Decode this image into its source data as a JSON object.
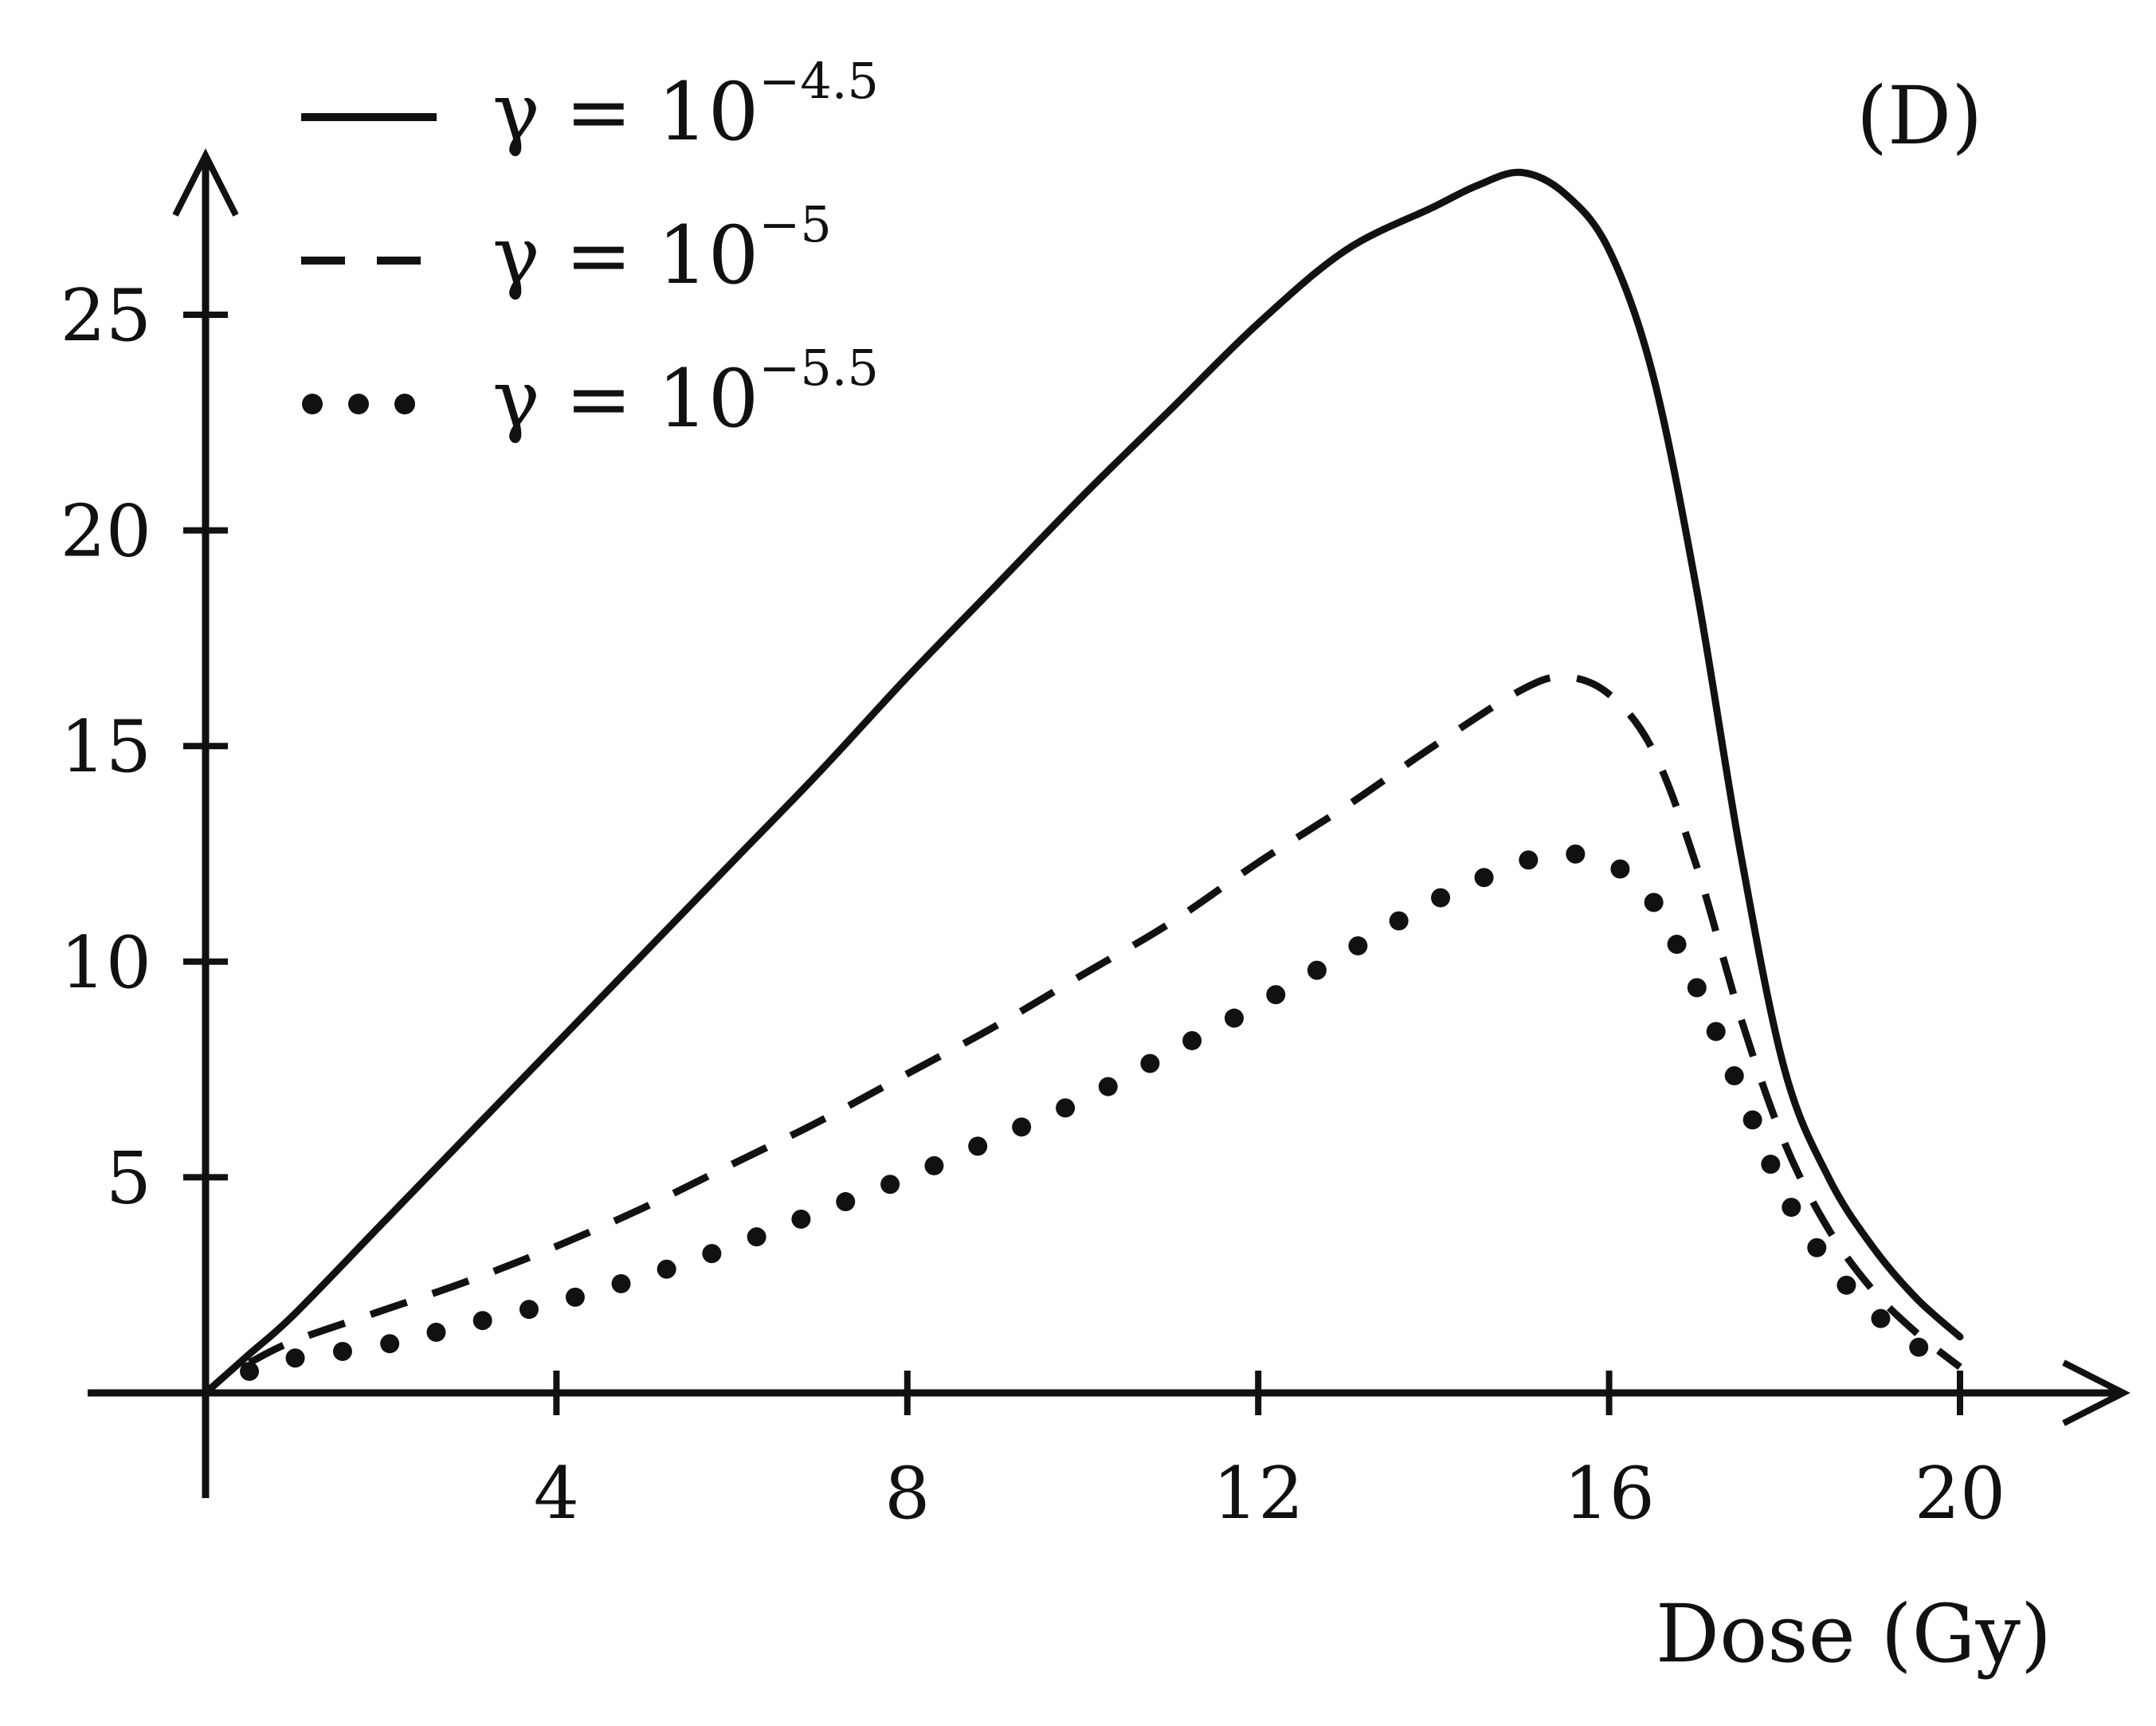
{
  "chart_data": {
    "type": "line",
    "panel_label": "(D)",
    "xlabel": "Dose (Gy)",
    "ylabel": "",
    "xlim": [
      0,
      21.5
    ],
    "ylim": [
      0,
      28.5
    ],
    "xticks": [
      4,
      8,
      12,
      16,
      20
    ],
    "yticks": [
      5,
      10,
      15,
      20,
      25
    ],
    "legend_position": "top-left",
    "series": [
      {
        "name": "γ = 10",
        "exponent": "−4.5",
        "style": "solid",
        "x": [
          0,
          0.5,
          1,
          2,
          3,
          4,
          5,
          6,
          7,
          8,
          9,
          10,
          11,
          12,
          13,
          14,
          14.5,
          15,
          15.5,
          16,
          16.5,
          17,
          17.5,
          18,
          18.5,
          19,
          19.5,
          20
        ],
        "y": [
          0,
          0.9,
          1.8,
          3.9,
          6.0,
          8.1,
          10.2,
          12.3,
          14.4,
          16.6,
          18.7,
          20.8,
          22.8,
          24.8,
          26.5,
          27.5,
          28.0,
          28.3,
          27.8,
          26.5,
          23.6,
          18.6,
          12.5,
          7.5,
          5.0,
          3.4,
          2.2,
          1.3
        ]
      },
      {
        "name": "γ = 10",
        "exponent": "−5",
        "style": "dashed",
        "x": [
          0.5,
          1,
          2,
          3,
          4,
          5,
          6,
          7,
          8,
          9,
          10,
          11,
          12,
          13,
          14,
          15,
          15.5,
          16,
          16.5,
          17,
          17.5,
          18,
          18.5,
          19,
          19.5,
          20
        ],
        "y": [
          0.7,
          1.2,
          1.9,
          2.6,
          3.4,
          4.3,
          5.3,
          6.3,
          7.4,
          8.5,
          9.7,
          10.9,
          12.3,
          13.6,
          15.0,
          16.3,
          16.6,
          16.2,
          14.9,
          12.2,
          8.7,
          5.8,
          3.8,
          2.4,
          1.4,
          0.6
        ]
      },
      {
        "name": "γ = 10",
        "exponent": "−5.5",
        "style": "dotted",
        "x": [
          0.5,
          1,
          2,
          3,
          4,
          5,
          6,
          7,
          8,
          9,
          10,
          11,
          12,
          13,
          14,
          15,
          15.5,
          16,
          16.5,
          17,
          17.5,
          18,
          18.5,
          19,
          19.5,
          20
        ],
        "y": [
          0.5,
          0.8,
          1.1,
          1.6,
          2.1,
          2.7,
          3.4,
          4.2,
          5.0,
          5.9,
          6.8,
          7.9,
          9.0,
          10.2,
          11.4,
          12.3,
          12.5,
          12.3,
          11.4,
          9.4,
          7.0,
          4.6,
          3.0,
          1.9,
          1.1,
          0.5
        ]
      }
    ]
  }
}
